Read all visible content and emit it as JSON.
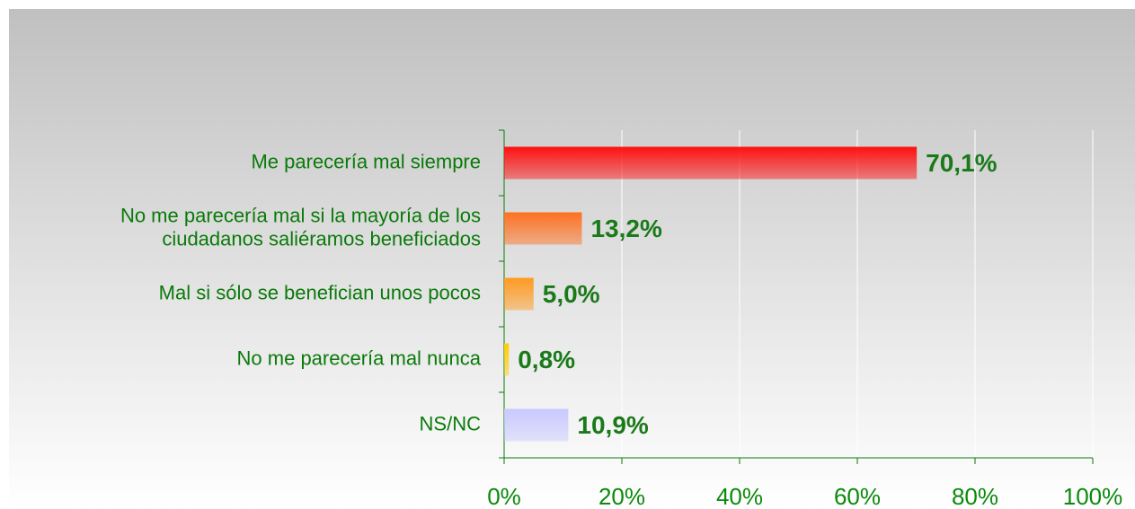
{
  "chart_data": {
    "type": "bar",
    "orientation": "horizontal",
    "categories": [
      "Me parecería mal siempre",
      "No me parecería mal si la mayoría de los\nciudadanos saliéramos beneficiados",
      "Mal si sólo se benefician unos pocos",
      "No me parecería mal nunca",
      "NS/NC"
    ],
    "values": [
      70.1,
      13.2,
      5.0,
      0.8,
      10.9
    ],
    "value_labels": [
      "70,1%",
      "13,2%",
      "5,0%",
      "0,8%",
      "10,9%"
    ],
    "colors": [
      "#ff1010",
      "#ff7020",
      "#ff9a20",
      "#ffcc00",
      "#c8c8ff"
    ],
    "xlim": [
      0,
      100
    ],
    "xticks": [
      {
        "value": 0,
        "label": "0%"
      },
      {
        "value": 20,
        "label": "20%"
      },
      {
        "value": 40,
        "label": "40%"
      },
      {
        "value": 60,
        "label": "60%"
      },
      {
        "value": 80,
        "label": "80%"
      },
      {
        "value": 100,
        "label": "100%"
      }
    ],
    "grid": true
  }
}
